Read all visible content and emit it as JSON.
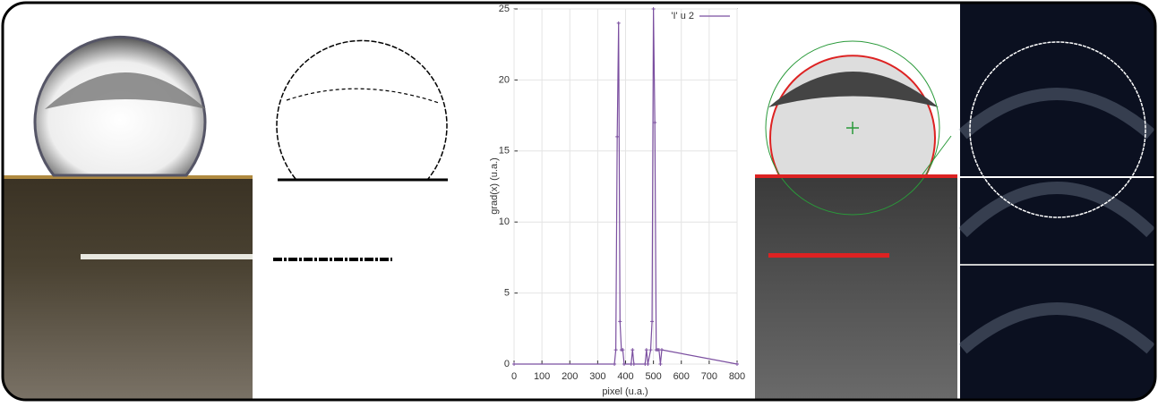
{
  "chart_data": {
    "type": "line",
    "xlabel": "pixel (u.a.)",
    "ylabel": "grad(x) (u.a.)",
    "x": [
      0,
      360,
      365,
      370,
      375,
      380,
      385,
      390,
      395,
      420,
      425,
      430,
      470,
      475,
      480,
      490,
      495,
      500,
      505,
      510,
      515,
      520,
      525,
      530,
      800
    ],
    "series": [
      {
        "name": "'I' u 2",
        "color": "#7b4fa0",
        "values": [
          0,
          0,
          1,
          16,
          24,
          3,
          1,
          1,
          0,
          0,
          1,
          0,
          0,
          1,
          0,
          1,
          3,
          25,
          17,
          1,
          1,
          1,
          0,
          1,
          0
        ]
      }
    ],
    "xlim": [
      0,
      800
    ],
    "xticks": [
      0,
      100,
      200,
      300,
      400,
      500,
      600,
      700,
      800
    ],
    "ylim": [
      0,
      25
    ],
    "yticks": [
      0,
      5,
      10,
      15,
      20,
      25
    ],
    "grid": true,
    "legend": "top-right"
  }
}
